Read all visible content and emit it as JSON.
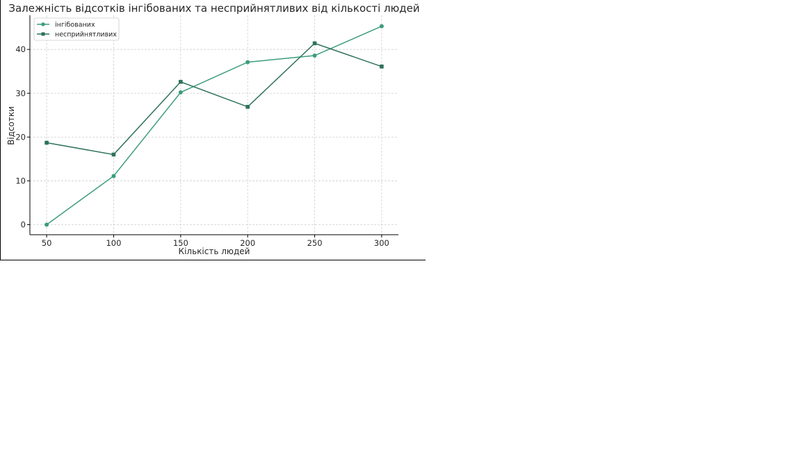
{
  "chart_data": {
    "type": "line",
    "title": "Залежність відсотків інгібованих та несприйнятливих від кількості людей",
    "xlabel": "Кількість людей",
    "ylabel": "Відсотки",
    "x": [
      50,
      100,
      150,
      200,
      250,
      300
    ],
    "xticks": [
      50,
      100,
      150,
      200,
      250,
      300
    ],
    "yticks": [
      0,
      10,
      20,
      30,
      40
    ],
    "xlim": [
      37.5,
      312.5
    ],
    "ylim": [
      -2.3,
      47.8
    ],
    "grid": true,
    "legend_position": "top-left",
    "series": [
      {
        "name": "інгібованих",
        "marker": "circle",
        "color": "#3d9c7d",
        "values": [
          0,
          11.1,
          30.2,
          37.1,
          38.6,
          45.3
        ]
      },
      {
        "name": "несприйнятливих",
        "marker": "square",
        "color": "#2e7259",
        "values": [
          18.7,
          16.0,
          32.6,
          26.9,
          41.4,
          36.1
        ]
      }
    ]
  }
}
